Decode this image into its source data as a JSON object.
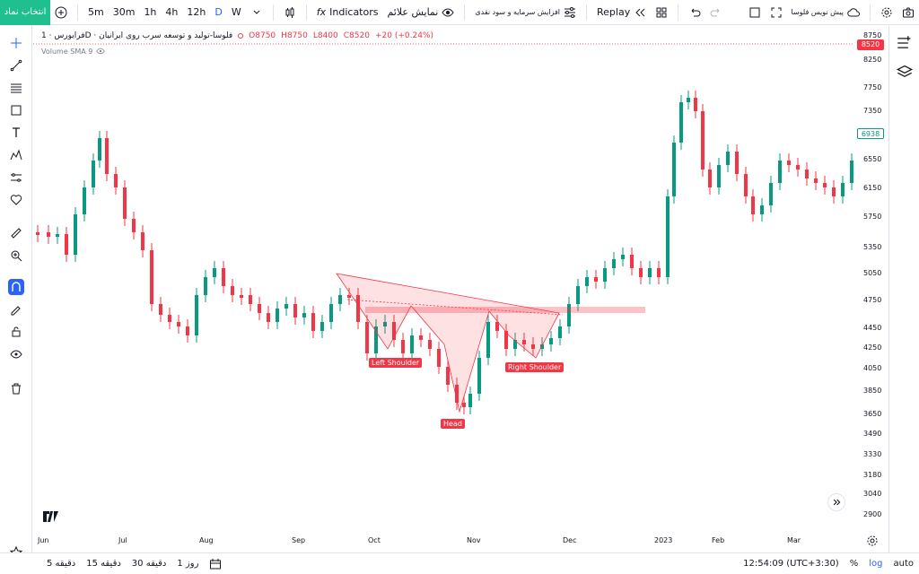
{
  "toolbar": {
    "symbol_button": "انتخاب نماد",
    "intervals": [
      "5m",
      "30m",
      "1h",
      "4h",
      "12h",
      "D",
      "W"
    ],
    "active_interval": "D",
    "indicators_label": "Indicators",
    "show_indicators_label": "نمایش علائم",
    "capital_increase_label": "افزایش سرمایه و سود نقدی",
    "replay_label": "Replay",
    "prediction_label": "پیش نویس فلوسا"
  },
  "legend": {
    "title": "فرایورس · 1D · فلوسا-تولید و توسعه سرب روی ایرانیان",
    "open": "O8750",
    "high": "H8750",
    "low": "L8400",
    "close": "C8520",
    "change": "+20 (+0.24%)",
    "volume_label": "Volume SMA 9"
  },
  "price_axis": {
    "labels": [
      "8750",
      "8250",
      "7750",
      "7350",
      "6550",
      "6150",
      "5750",
      "5350",
      "5050",
      "4750",
      "4450",
      "4250",
      "4050",
      "3850",
      "3650",
      "3490",
      "3330",
      "3180",
      "3040",
      "2900"
    ],
    "current_price": "8520",
    "hover_price": "6938"
  },
  "time_axis": {
    "labels": [
      "Jun",
      "Jul",
      "Aug",
      "Sep",
      "Oct",
      "Nov",
      "Dec",
      "2023",
      "Feb",
      "Mar"
    ]
  },
  "patterns": {
    "left_shoulder": "Left Shoulder",
    "head": "Head",
    "right_shoulder": "Right Shoulder"
  },
  "bottombar": {
    "ranges": [
      "5 دقیقه",
      "15 دقیقه",
      "30 دقیقه",
      "1 روز"
    ],
    "clock": "12:54:09 (UTC+3:30)",
    "percent_label": "%",
    "log_label": "log",
    "auto_label": "auto"
  },
  "colors": {
    "up": "#089981",
    "down": "#f23645",
    "accent": "#2962ff",
    "symbol_button": "#1fbf8f"
  },
  "chart_data": {
    "type": "candlestick",
    "x": [
      "Jun",
      "Jul",
      "Aug",
      "Sep",
      "Oct",
      "Nov",
      "Dec",
      "2023",
      "Feb",
      "Mar"
    ],
    "close": [
      5500,
      6400,
      4600,
      4700,
      4450,
      3700,
      4300,
      4900,
      6500,
      6350
    ],
    "last_close": 8520
  }
}
